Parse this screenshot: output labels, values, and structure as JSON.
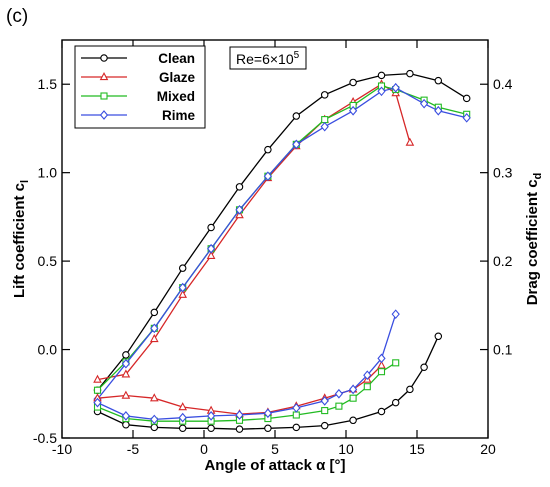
{
  "chart_data": {
    "type": "line",
    "panel_label": "(c)",
    "annotation": {
      "prefix": "Re=6×10",
      "exponent": "5"
    },
    "xlabel": "Angle of attack α [°]",
    "ylabel_left": "Lift coefficient c",
    "ylabel_left_sub": "l",
    "ylabel_right": "Drag coefficient c",
    "ylabel_right_sub": "d",
    "xlim": [
      -10,
      20
    ],
    "ylim_left": [
      -0.5,
      1.75
    ],
    "ylim_right": [
      0,
      0.45
    ],
    "x_ticks": [
      -10,
      -5,
      0,
      5,
      10,
      15,
      20
    ],
    "x_tick_labels": [
      "-10",
      "-5",
      "0",
      "5",
      "10",
      "15",
      "20"
    ],
    "y_left_ticks": [
      -0.5,
      0,
      0.5,
      1,
      1.5
    ],
    "y_left_tick_labels": [
      "-0.5",
      "0.0",
      "0.5",
      "1.0",
      "1.5"
    ],
    "y_right_ticks": [
      0.1,
      0.2,
      0.3,
      0.4
    ],
    "y_right_tick_labels": [
      "0.1",
      "0.2",
      "0.3",
      "0.4"
    ],
    "legend_position": "top-left",
    "grid": false,
    "series": [
      {
        "name": "Clean",
        "color": "#000000",
        "marker": "circle",
        "axis": "left",
        "x": [
          -7.5,
          -5.5,
          -3.5,
          -1.5,
          0.5,
          2.5,
          4.5,
          6.5,
          8.5,
          10.5,
          12.5,
          14.5,
          16.5,
          18.5
        ],
        "y": [
          -0.23,
          -0.03,
          0.21,
          0.46,
          0.69,
          0.92,
          1.13,
          1.32,
          1.44,
          1.51,
          1.55,
          1.56,
          1.52,
          1.42
        ]
      },
      {
        "name": "Glaze",
        "color": "#d62728",
        "marker": "triangle",
        "axis": "left",
        "x": [
          -7.5,
          -5.5,
          -3.5,
          -1.5,
          0.5,
          2.5,
          4.5,
          6.5,
          8.5,
          10.5,
          12.5,
          13.5,
          14.5
        ],
        "y": [
          -0.17,
          -0.14,
          0.06,
          0.31,
          0.53,
          0.76,
          0.97,
          1.15,
          1.3,
          1.4,
          1.5,
          1.45,
          1.17
        ]
      },
      {
        "name": "Mixed",
        "color": "#22bb22",
        "marker": "square",
        "axis": "left",
        "x": [
          -7.5,
          -5.5,
          -3.5,
          -1.5,
          0.5,
          2.5,
          4.5,
          6.5,
          8.5,
          10.5,
          12.5,
          13.5,
          15.5,
          16.5,
          18.5
        ],
        "y": [
          -0.23,
          -0.07,
          0.12,
          0.35,
          0.57,
          0.79,
          0.98,
          1.16,
          1.3,
          1.38,
          1.49,
          1.47,
          1.41,
          1.37,
          1.33
        ]
      },
      {
        "name": "Rime",
        "color": "#3a4ee0",
        "marker": "diamond",
        "axis": "left",
        "x": [
          -7.5,
          -5.5,
          -3.5,
          -1.5,
          0.5,
          2.5,
          4.5,
          6.5,
          8.5,
          10.5,
          12.5,
          13.5,
          15.5,
          16.5,
          18.5
        ],
        "y": [
          -0.28,
          -0.08,
          0.12,
          0.35,
          0.57,
          0.79,
          0.98,
          1.16,
          1.26,
          1.35,
          1.46,
          1.48,
          1.39,
          1.35,
          1.31
        ]
      },
      {
        "name": "Clean",
        "color": "#000000",
        "marker": "circle",
        "axis": "right",
        "x": [
          -7.5,
          -5.5,
          -3.5,
          -1.5,
          0.5,
          2.5,
          4.5,
          6.5,
          8.5,
          10.5,
          12.5,
          13.5,
          14.5,
          15.5,
          16.5
        ],
        "y": [
          0.03,
          0.015,
          0.012,
          0.011,
          0.011,
          0.01,
          0.011,
          0.012,
          0.014,
          0.02,
          0.03,
          0.04,
          0.055,
          0.08,
          0.115
        ]
      },
      {
        "name": "Glaze",
        "color": "#d62728",
        "marker": "triangle",
        "axis": "right",
        "x": [
          -7.5,
          -5.5,
          -3.5,
          -1.5,
          0.5,
          2.5,
          4.5,
          6.5,
          8.5,
          10.5,
          11.5,
          12.5
        ],
        "y": [
          0.045,
          0.048,
          0.045,
          0.035,
          0.031,
          0.027,
          0.029,
          0.036,
          0.045,
          0.055,
          0.066,
          0.082
        ]
      },
      {
        "name": "Mixed",
        "color": "#22bb22",
        "marker": "square",
        "axis": "right",
        "x": [
          -7.5,
          -5.5,
          -3.5,
          -1.5,
          0.5,
          2.5,
          4.5,
          6.5,
          8.5,
          9.5,
          10.5,
          11.5,
          12.5,
          13.5
        ],
        "y": [
          0.035,
          0.022,
          0.019,
          0.019,
          0.019,
          0.02,
          0.022,
          0.026,
          0.031,
          0.036,
          0.045,
          0.058,
          0.075,
          0.085
        ]
      },
      {
        "name": "Rime",
        "color": "#3a4ee0",
        "marker": "diamond",
        "axis": "right",
        "x": [
          -7.5,
          -5.5,
          -3.5,
          -1.5,
          0.5,
          2.5,
          4.5,
          6.5,
          8.5,
          9.5,
          10.5,
          11.5,
          12.5,
          13.5
        ],
        "y": [
          0.04,
          0.025,
          0.021,
          0.023,
          0.025,
          0.026,
          0.028,
          0.034,
          0.042,
          0.05,
          0.055,
          0.071,
          0.09,
          0.14
        ]
      }
    ]
  }
}
